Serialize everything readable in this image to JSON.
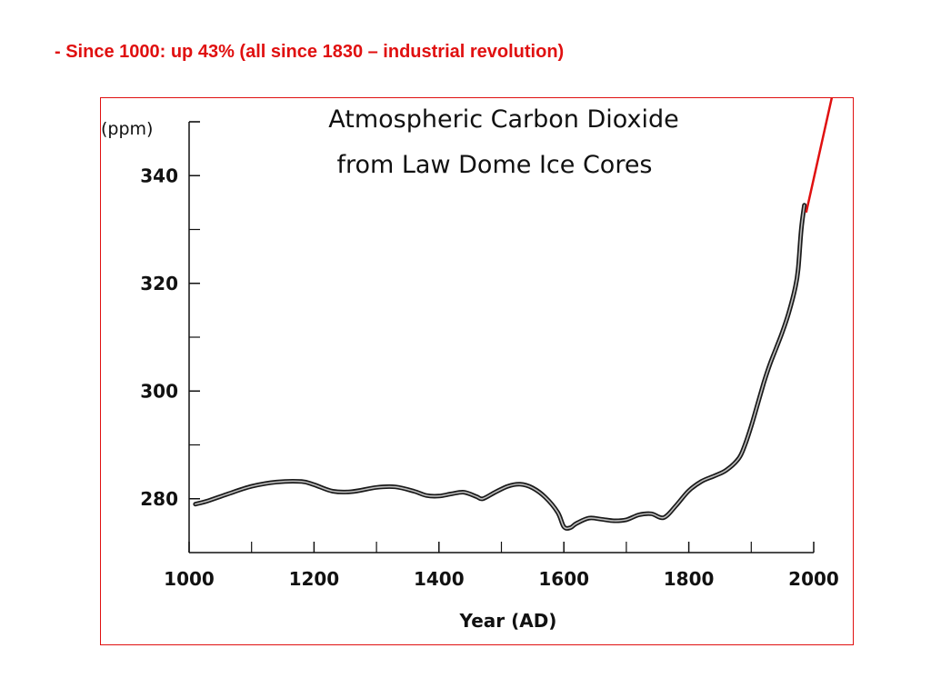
{
  "slide": {
    "note": "- Since 1000: up 43% (all since 1830 – industrial revolution)",
    "accent_color": "#e01010"
  },
  "chart_data": {
    "type": "line",
    "title": "Atmospheric Carbon Dioxide",
    "subtitle": "from Law Dome Ice Cores",
    "xlabel": "Year (AD)",
    "ylabel": "(ppm)",
    "xlim": [
      1000,
      2000
    ],
    "ylim": [
      270,
      350
    ],
    "x_ticks": [
      1000,
      1200,
      1400,
      1600,
      1800,
      2000
    ],
    "x_minor_ticks": [
      1100,
      1300,
      1500,
      1700,
      1900
    ],
    "y_ticks": [
      280,
      300,
      320,
      340
    ],
    "y_minor_ticks": [
      290,
      310,
      330,
      350
    ],
    "grid": false,
    "series": [
      {
        "x": [
          1010,
          1030,
          1060,
          1100,
          1140,
          1180,
          1200,
          1230,
          1260,
          1300,
          1330,
          1360,
          1380,
          1400,
          1420,
          1440,
          1460,
          1470,
          1490,
          1510,
          1530,
          1550,
          1570,
          1590,
          1600,
          1610,
          1620,
          1640,
          1660,
          1680,
          1700,
          1720,
          1740,
          1760,
          1780,
          1800,
          1820,
          1840,
          1860,
          1880,
          1890,
          1900,
          1910,
          1920,
          1930,
          1940,
          1950,
          1960,
          1970,
          1975,
          1980,
          1985
        ],
        "y": [
          279.0,
          279.6,
          280.8,
          282.3,
          283.1,
          283.2,
          282.6,
          281.4,
          281.3,
          282.1,
          282.2,
          281.4,
          280.6,
          280.5,
          280.9,
          281.2,
          280.4,
          280.0,
          281.2,
          282.3,
          282.7,
          282.0,
          280.3,
          277.5,
          274.8,
          274.6,
          275.4,
          276.4,
          276.2,
          275.9,
          276.1,
          277.0,
          277.2,
          276.5,
          278.8,
          281.5,
          283.2,
          284.2,
          285.3,
          287.5,
          290.0,
          293.5,
          297.5,
          301.5,
          305.0,
          308.0,
          311.0,
          314.5,
          319.0,
          322.5,
          330.0,
          334.5
        ]
      }
    ]
  }
}
